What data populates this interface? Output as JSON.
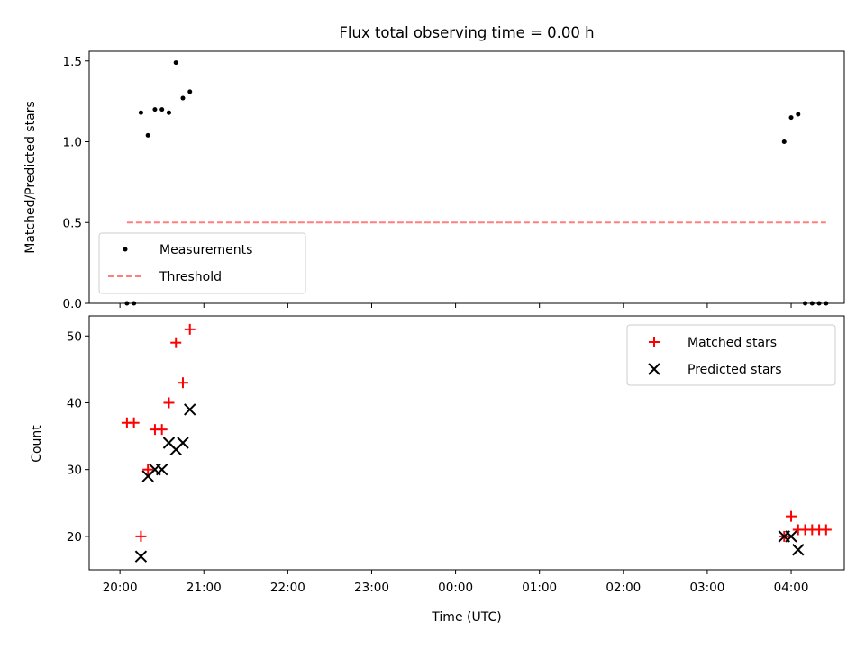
{
  "chart_data": [
    {
      "type": "scatter",
      "title": "Flux total observing time = 0.00 h",
      "xlabel": "",
      "ylabel": "Matched/Predicted stars",
      "ylim": [
        0,
        1.56
      ],
      "yticks": [
        "0.0",
        "0.5",
        "1.0",
        "1.5"
      ],
      "grid": false,
      "legend_position": "lower-left",
      "series": [
        {
          "name": "Measurements",
          "marker": "dot",
          "color": "#000000",
          "points": [
            {
              "x": "20:05",
              "y": 0.0
            },
            {
              "x": "20:10",
              "y": 0.0
            },
            {
              "x": "20:15",
              "y": 1.18
            },
            {
              "x": "20:20",
              "y": 1.04
            },
            {
              "x": "20:25",
              "y": 1.2
            },
            {
              "x": "20:30",
              "y": 1.2
            },
            {
              "x": "20:35",
              "y": 1.18
            },
            {
              "x": "20:40",
              "y": 1.49
            },
            {
              "x": "20:45",
              "y": 1.27
            },
            {
              "x": "20:50",
              "y": 1.31
            },
            {
              "x": "03:55",
              "y": 1.0
            },
            {
              "x": "04:00",
              "y": 1.15
            },
            {
              "x": "04:05",
              "y": 1.17
            },
            {
              "x": "04:10",
              "y": 0.0
            },
            {
              "x": "04:15",
              "y": 0.0
            },
            {
              "x": "04:20",
              "y": 0.0
            },
            {
              "x": "04:25",
              "y": 0.0
            }
          ]
        },
        {
          "name": "Threshold",
          "line": "dashed",
          "color": "#ff7f7f",
          "points": [
            {
              "x": "20:05",
              "y": 0.5
            },
            {
              "x": "04:25",
              "y": 0.5
            }
          ]
        }
      ]
    },
    {
      "type": "scatter",
      "title": "",
      "xlabel": "Time (UTC)",
      "ylabel": "Count",
      "ylim": [
        15,
        53
      ],
      "yticks": [
        "20",
        "30",
        "40",
        "50"
      ],
      "x_ticks": [
        "20:00",
        "21:00",
        "22:00",
        "23:00",
        "00:00",
        "01:00",
        "02:00",
        "03:00",
        "04:00"
      ],
      "grid": false,
      "legend_position": "top-right",
      "series": [
        {
          "name": "Matched stars",
          "marker": "plus",
          "color": "#ff0000",
          "points": [
            {
              "x": "20:05",
              "y": 37
            },
            {
              "x": "20:10",
              "y": 37
            },
            {
              "x": "20:15",
              "y": 20
            },
            {
              "x": "20:20",
              "y": 30
            },
            {
              "x": "20:25",
              "y": 36
            },
            {
              "x": "20:30",
              "y": 36
            },
            {
              "x": "20:35",
              "y": 40
            },
            {
              "x": "20:40",
              "y": 49
            },
            {
              "x": "20:45",
              "y": 43
            },
            {
              "x": "20:50",
              "y": 51
            },
            {
              "x": "03:55",
              "y": 20
            },
            {
              "x": "04:00",
              "y": 23
            },
            {
              "x": "04:05",
              "y": 21
            },
            {
              "x": "04:10",
              "y": 21
            },
            {
              "x": "04:15",
              "y": 21
            },
            {
              "x": "04:20",
              "y": 21
            },
            {
              "x": "04:25",
              "y": 21
            }
          ]
        },
        {
          "name": "Predicted stars",
          "marker": "x",
          "color": "#000000",
          "points": [
            {
              "x": "20:15",
              "y": 17
            },
            {
              "x": "20:20",
              "y": 29
            },
            {
              "x": "20:25",
              "y": 30
            },
            {
              "x": "20:30",
              "y": 30
            },
            {
              "x": "20:35",
              "y": 34
            },
            {
              "x": "20:40",
              "y": 33
            },
            {
              "x": "20:45",
              "y": 34
            },
            {
              "x": "20:50",
              "y": 39
            },
            {
              "x": "03:55",
              "y": 20
            },
            {
              "x": "04:00",
              "y": 20
            },
            {
              "x": "04:05",
              "y": 18
            }
          ]
        }
      ]
    }
  ]
}
